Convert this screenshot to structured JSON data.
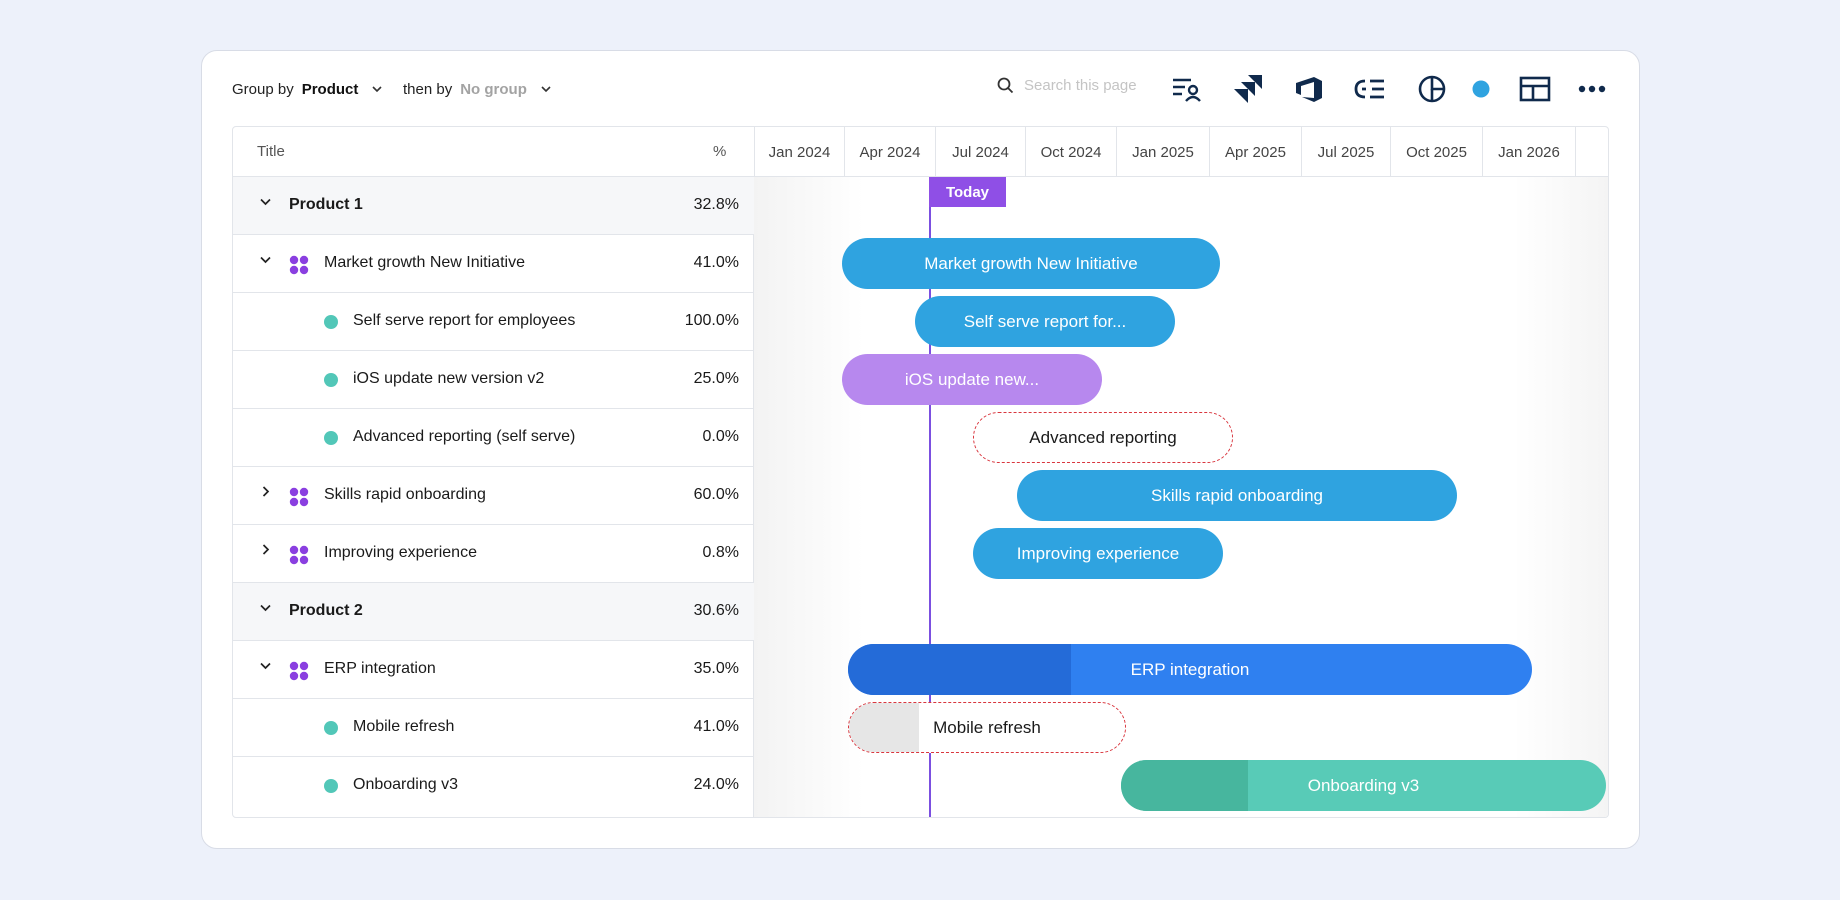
{
  "toolbar": {
    "group_by_label": "Group by",
    "group_by_value": "Product",
    "then_by_label": "then by",
    "then_by_value": "No group",
    "search_placeholder": "Search this page"
  },
  "columns": {
    "title": "Title",
    "percent": "%"
  },
  "months": [
    "Jan 2024",
    "Apr 2024",
    "Jul 2024",
    "Oct 2024",
    "Jan 2025",
    "Apr 2025",
    "Jul 2025",
    "Oct 2025",
    "Jan 2026"
  ],
  "today_label": "Today",
  "rows": [
    {
      "title": "Product 1",
      "percent": "32.8%"
    },
    {
      "title": "Market growth New Initiative",
      "percent": "41.0%"
    },
    {
      "title": "Self serve report for employees",
      "percent": "100.0%"
    },
    {
      "title": "iOS update new version v2",
      "percent": "25.0%"
    },
    {
      "title": "Advanced reporting (self serve)",
      "percent": "0.0%"
    },
    {
      "title": "Skills rapid onboarding",
      "percent": "60.0%"
    },
    {
      "title": "Improving experience",
      "percent": "0.8%"
    },
    {
      "title": "Product 2",
      "percent": "30.6%"
    },
    {
      "title": "ERP integration",
      "percent": "35.0%"
    },
    {
      "title": "Mobile refresh",
      "percent": "41.0%"
    },
    {
      "title": "Onboarding v3",
      "percent": "24.0%"
    }
  ],
  "bars": [
    {
      "label": "Market growth New Initiative",
      "color": "#2fa3e0"
    },
    {
      "label": "Self serve report for...",
      "color": "#2fa3e0"
    },
    {
      "label": "iOS update new...",
      "color": "#b788ee"
    },
    {
      "label": "Advanced reporting"
    },
    {
      "label": "Skills rapid onboarding",
      "color": "#2fa3e0"
    },
    {
      "label": "Improving experience",
      "color": "#2fa3e0"
    },
    {
      "label": "ERP integration",
      "color": "#2f80f0",
      "progress_color": "#246bd8"
    },
    {
      "label": "Mobile refresh",
      "progress_color": "#e6e6e6"
    },
    {
      "label": "Onboarding v3",
      "color": "#58cbb7",
      "progress_color": "#47b69e"
    }
  ],
  "colors": {
    "accent": "#8f4fe6",
    "icon": "#102a4c",
    "dot_blue": "#2fa3e0",
    "dot_teal": "#52c7b8"
  }
}
